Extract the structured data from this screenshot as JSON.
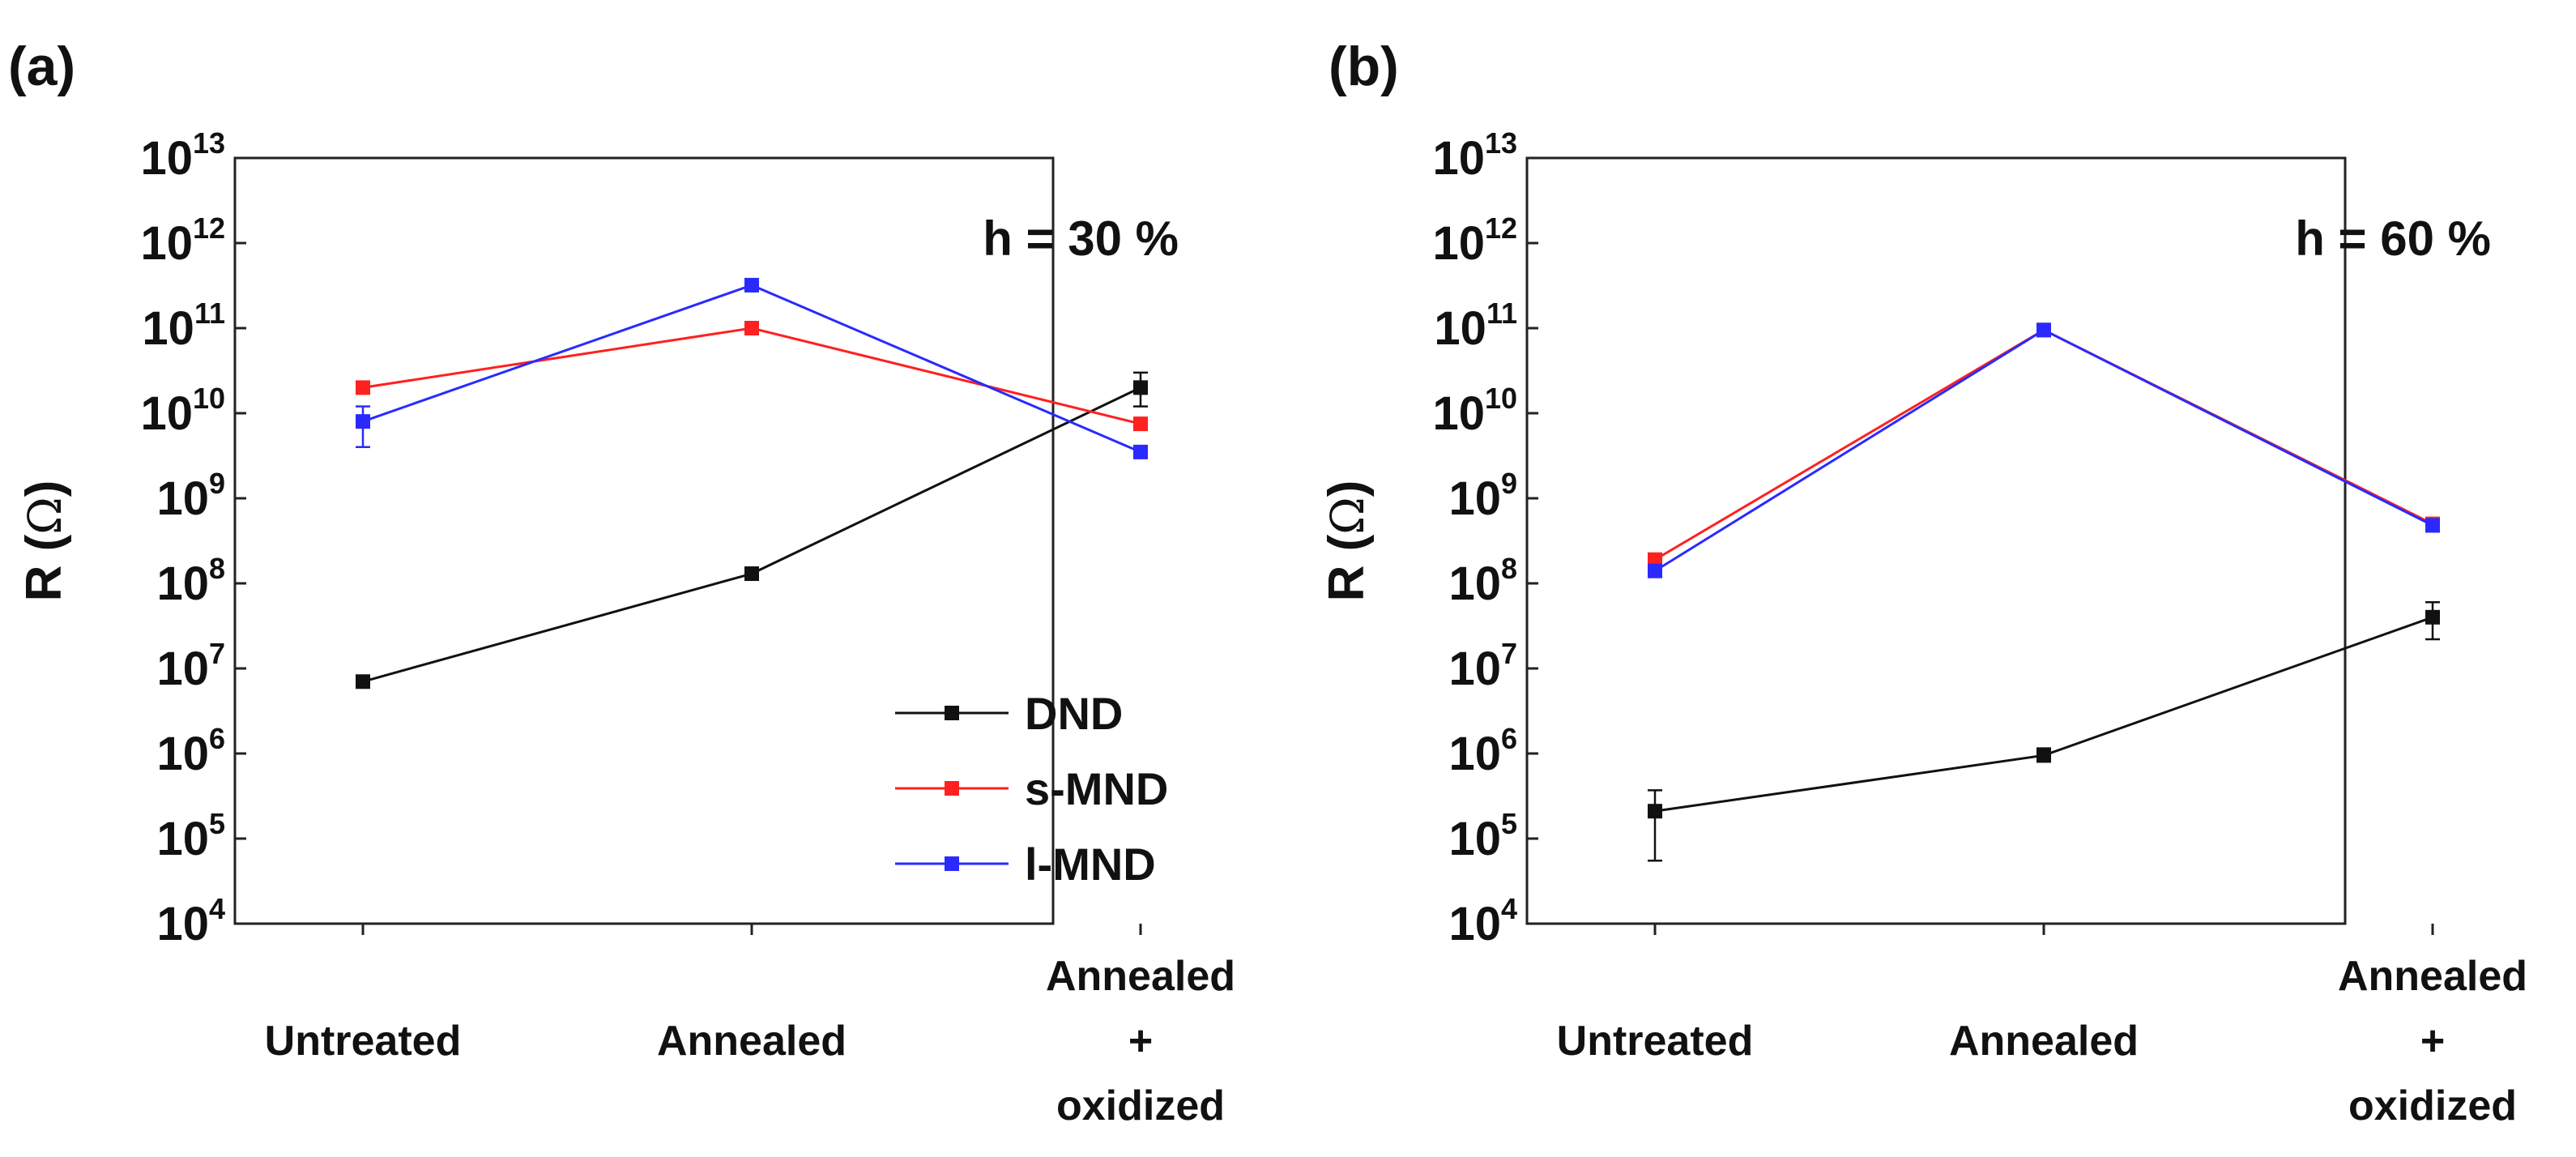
{
  "chart_data": [
    {
      "type": "line",
      "panel": "(a)",
      "annotation": "h = 30 %",
      "title": "",
      "xlabel": "",
      "ylabel": "R (Ω)",
      "ylabel_main": "R",
      "ylabel_unit": "Ω",
      "yscale": "log",
      "ylim": [
        10000,
        10000000000000
      ],
      "y_ticks": [
        {
          "base": "10",
          "exp": "4"
        },
        {
          "base": "10",
          "exp": "5"
        },
        {
          "base": "10",
          "exp": "6"
        },
        {
          "base": "10",
          "exp": "7"
        },
        {
          "base": "10",
          "exp": "8"
        },
        {
          "base": "10",
          "exp": "9"
        },
        {
          "base": "10",
          "exp": "10"
        },
        {
          "base": "10",
          "exp": "11"
        },
        {
          "base": "10",
          "exp": "12"
        },
        {
          "base": "10",
          "exp": "13"
        }
      ],
      "categories": [
        [
          "Untreated"
        ],
        [
          "Annealed"
        ],
        [
          "Annealed",
          "+",
          "oxidized"
        ]
      ],
      "legend_position": "bottom-right",
      "show_legend": true,
      "series": [
        {
          "name": "DND",
          "color": "#111111",
          "values": [
            7000000,
            130000000,
            20000000000
          ],
          "error": [
            [
              null,
              null
            ],
            [
              null,
              null
            ],
            [
              12000000000,
              30000000000
            ]
          ]
        },
        {
          "name": "s-MND",
          "color": "#ff2020",
          "values": [
            20000000000,
            100000000000,
            7500000000
          ],
          "error": [
            [
              null,
              null
            ],
            [
              null,
              null
            ],
            [
              null,
              null
            ]
          ]
        },
        {
          "name": "l-MND",
          "color": "#2a2aff",
          "values": [
            8000000000,
            320000000000,
            3500000000
          ],
          "error": [
            [
              4000000000,
              12000000000
            ],
            [
              null,
              null
            ],
            [
              null,
              null
            ]
          ]
        }
      ]
    },
    {
      "type": "line",
      "panel": "(b)",
      "annotation": "h = 60 %",
      "title": "",
      "xlabel": "",
      "ylabel": "R (Ω)",
      "ylabel_main": "R",
      "ylabel_unit": "Ω",
      "yscale": "log",
      "ylim": [
        10000,
        10000000000000
      ],
      "y_ticks": [
        {
          "base": "10",
          "exp": "4"
        },
        {
          "base": "10",
          "exp": "5"
        },
        {
          "base": "10",
          "exp": "6"
        },
        {
          "base": "10",
          "exp": "7"
        },
        {
          "base": "10",
          "exp": "8"
        },
        {
          "base": "10",
          "exp": "9"
        },
        {
          "base": "10",
          "exp": "10"
        },
        {
          "base": "10",
          "exp": "11"
        },
        {
          "base": "10",
          "exp": "12"
        },
        {
          "base": "10",
          "exp": "13"
        }
      ],
      "categories": [
        [
          "Untreated"
        ],
        [
          "Annealed"
        ],
        [
          "Annealed",
          "+",
          "oxidized"
        ]
      ],
      "legend_position": "none",
      "show_legend": false,
      "series": [
        {
          "name": "DND",
          "color": "#111111",
          "values": [
            210000,
            950000,
            40000000
          ],
          "error": [
            [
              55000,
              370000
            ],
            [
              800000,
              1150000
            ],
            [
              22000000,
              60000000
            ]
          ]
        },
        {
          "name": "s-MND",
          "color": "#ff2020",
          "values": [
            190000000,
            95000000000,
            500000000
          ],
          "error": [
            [
              null,
              null
            ],
            [
              null,
              null
            ],
            [
              null,
              null
            ]
          ]
        },
        {
          "name": "l-MND",
          "color": "#2a2aff",
          "values": [
            140000000,
            95000000000,
            480000000
          ],
          "error": [
            [
              null,
              null
            ],
            [
              null,
              null
            ],
            [
              null,
              null
            ]
          ]
        }
      ]
    }
  ]
}
